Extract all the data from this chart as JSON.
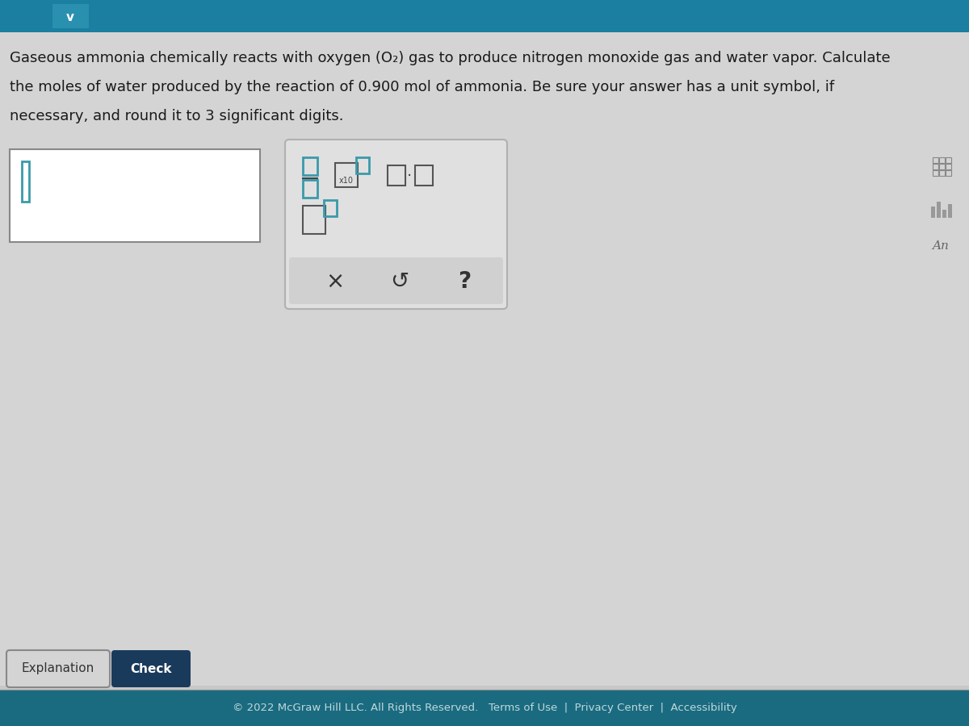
{
  "bg_color": "#c8c8c8",
  "top_bar_color": "#1a7fa0",
  "footer_bg": "#1a6b80",
  "text_color": "#1a1a1a",
  "question_line1": "Gaseous ammonia chemically reacts with oxygen (O₂) gas to produce nitrogen monoxide gas and water vapor. Calculate",
  "question_line2": "the moles of water produced by the reaction of 0.900 mol of ammonia. Be sure your answer has a unit symbol, if",
  "question_line3": "necessary, and round it to 3 significant digits.",
  "footer_text": "© 2022 McGraw Hill LLC. All Rights Reserved.   Terms of Use  |  Privacy Center  |  Accessibility",
  "explanation_btn": "Explanation",
  "check_btn": "Check",
  "teal_color": "#3a9aaa",
  "dark_navy": "#1a3a5c"
}
